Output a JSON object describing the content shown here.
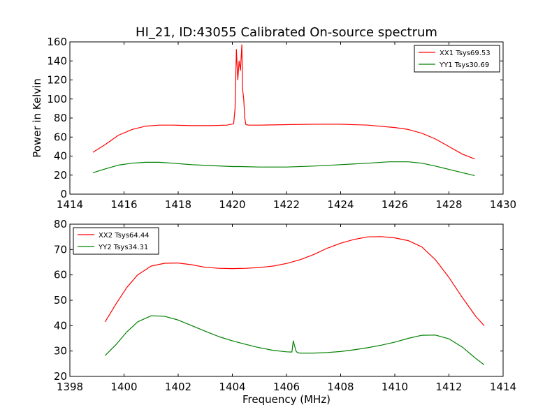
{
  "title": "HI_21, ID:43055 Calibrated On-source spectrum",
  "ylabel": "Power in Kelvin",
  "xlabel": "Frequency (MHz)",
  "colors": {
    "red": "#ff0000",
    "green": "#008000"
  },
  "chart_data": [
    {
      "type": "line",
      "title": "HI_21, ID:43055 Calibrated On-source spectrum",
      "ylabel": "Power in Kelvin",
      "xlabel": "",
      "xlim": [
        1414,
        1430
      ],
      "ylim": [
        0,
        160
      ],
      "xticks": [
        1414,
        1416,
        1418,
        1420,
        1422,
        1424,
        1426,
        1428,
        1430
      ],
      "yticks": [
        0,
        20,
        40,
        60,
        80,
        100,
        120,
        140,
        160
      ],
      "grid": false,
      "legend_position": "top-right",
      "series": [
        {
          "name": "XX1 Tsys69.53",
          "color": "#ff0000",
          "x": [
            1414.85,
            1415.3,
            1415.8,
            1416.3,
            1416.8,
            1417.3,
            1417.8,
            1418.5,
            1419.2,
            1419.8,
            1420.05,
            1420.1,
            1420.15,
            1420.2,
            1420.25,
            1420.3,
            1420.35,
            1420.38,
            1420.42,
            1420.46,
            1420.5,
            1420.6,
            1421.0,
            1422.0,
            1423.0,
            1424.0,
            1425.0,
            1426.0,
            1426.5,
            1427.0,
            1427.5,
            1428.0,
            1428.5,
            1428.95
          ],
          "y": [
            44,
            52,
            62,
            68,
            71.5,
            72.5,
            72.5,
            72,
            72,
            72.5,
            74,
            90,
            152,
            120,
            140,
            130,
            157,
            110,
            100,
            80,
            73,
            72.5,
            72.5,
            73,
            73.5,
            73.5,
            72.5,
            70,
            68,
            64,
            58,
            50,
            42,
            37
          ]
        },
        {
          "name": "YY1 Tsys30.69",
          "color": "#008000",
          "x": [
            1414.85,
            1415.3,
            1415.8,
            1416.3,
            1416.8,
            1417.3,
            1417.8,
            1418.5,
            1419.2,
            1420.0,
            1420.3,
            1421.0,
            1422.0,
            1423.0,
            1424.0,
            1425.0,
            1425.8,
            1426.5,
            1427.0,
            1427.5,
            1428.0,
            1428.5,
            1428.95
          ],
          "y": [
            22.5,
            26.5,
            30.5,
            32.5,
            33.5,
            33.5,
            32.5,
            31,
            30,
            29,
            29,
            28.5,
            28.5,
            29.5,
            31,
            32.5,
            34,
            34,
            32.5,
            29.5,
            26,
            22.5,
            19.5
          ]
        }
      ]
    },
    {
      "type": "line",
      "title": "",
      "ylabel": "",
      "xlabel": "Frequency (MHz)",
      "xlim": [
        1398,
        1414
      ],
      "ylim": [
        20,
        80
      ],
      "xticks": [
        1398,
        1400,
        1402,
        1404,
        1406,
        1408,
        1410,
        1412,
        1414
      ],
      "yticks": [
        20,
        30,
        40,
        50,
        60,
        70,
        80
      ],
      "grid": false,
      "legend_position": "top-left",
      "series": [
        {
          "name": "XX2 Tsys64.44",
          "color": "#ff0000",
          "x": [
            1399.3,
            1399.7,
            1400.1,
            1400.5,
            1401.0,
            1401.5,
            1402.0,
            1402.5,
            1403.0,
            1403.5,
            1404.0,
            1404.5,
            1405.0,
            1405.5,
            1406.0,
            1406.5,
            1407.0,
            1407.5,
            1408.0,
            1408.5,
            1409.0,
            1409.5,
            1410.0,
            1410.5,
            1411.0,
            1411.5,
            1412.0,
            1412.5,
            1413.0,
            1413.3
          ],
          "y": [
            41.5,
            48.5,
            55,
            60,
            63.5,
            64.6,
            64.7,
            64,
            63,
            62.6,
            62.5,
            62.6,
            62.9,
            63.5,
            64.5,
            66,
            68,
            70.5,
            72.5,
            74,
            75,
            75.1,
            74.6,
            73.5,
            71,
            66,
            59,
            51,
            43.5,
            40
          ]
        },
        {
          "name": "YY2 Tsys34.31",
          "color": "#008000",
          "x": [
            1399.3,
            1399.7,
            1400.1,
            1400.5,
            1401.0,
            1401.5,
            1402.0,
            1402.5,
            1403.0,
            1403.5,
            1404.0,
            1404.5,
            1405.0,
            1405.5,
            1406.0,
            1406.2,
            1406.25,
            1406.3,
            1406.35,
            1406.4,
            1406.5,
            1407.0,
            1407.5,
            1408.0,
            1408.5,
            1409.0,
            1409.5,
            1410.0,
            1410.5,
            1411.0,
            1411.5,
            1412.0,
            1412.5,
            1413.0,
            1413.3
          ],
          "y": [
            28.2,
            32.5,
            37.5,
            41.5,
            43.9,
            43.7,
            42.2,
            40,
            37.8,
            35.7,
            34,
            32.6,
            31.3,
            30.3,
            29.7,
            29.6,
            34,
            32,
            30,
            29.4,
            29.2,
            29.2,
            29.4,
            29.8,
            30.5,
            31.3,
            32.3,
            33.5,
            35,
            36.2,
            36.3,
            34.8,
            31.5,
            27,
            24.6
          ]
        }
      ]
    }
  ]
}
